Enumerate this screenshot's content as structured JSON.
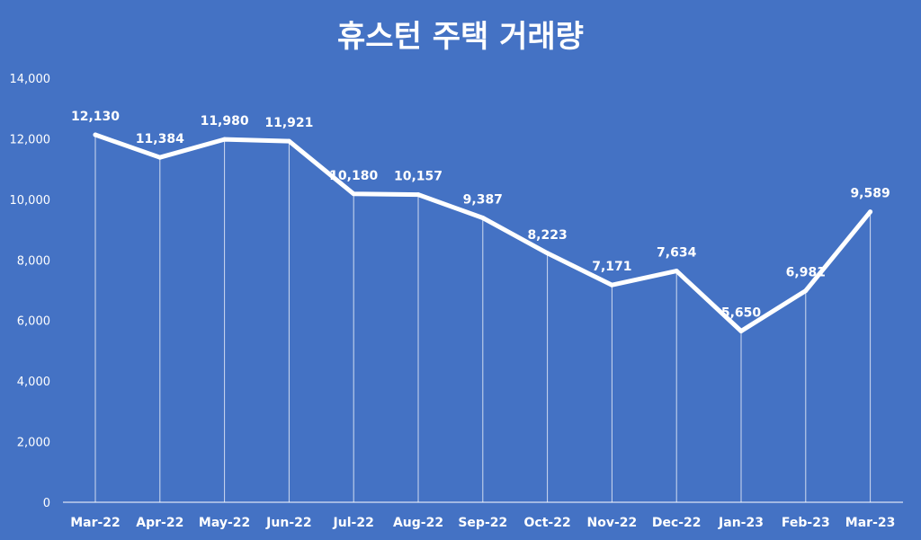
{
  "chart_data": {
    "type": "line",
    "title": "휴스턴 주택 거래량",
    "xlabel": "",
    "ylabel": "",
    "ylim": [
      0,
      14000
    ],
    "yticks": [
      0,
      2000,
      4000,
      6000,
      8000,
      10000,
      12000,
      14000
    ],
    "ytick_labels": [
      "0",
      "2,000",
      "4,000",
      "6,000",
      "8,000",
      "10,000",
      "12,000",
      "14,000"
    ],
    "grid": false,
    "legend": "none",
    "categories": [
      "Mar-22",
      "Apr-22",
      "May-22",
      "Jun-22",
      "Jul-22",
      "Aug-22",
      "Sep-22",
      "Oct-22",
      "Nov-22",
      "Dec-22",
      "Jan-23",
      "Feb-23",
      "Mar-23"
    ],
    "series": [
      {
        "values": [
          12130,
          11384,
          11980,
          11921,
          10180,
          10157,
          9387,
          8223,
          7171,
          7634,
          5650,
          6981,
          9589
        ],
        "data_labels": [
          "12,130",
          "11,384",
          "11,980",
          "11,921",
          "10,180",
          "10,157",
          "9,387",
          "8,223",
          "7,171",
          "7,634",
          "5,650",
          "6,981",
          "9,589"
        ]
      }
    ],
    "colors": {
      "background": "#4472C4",
      "line": "#FFFFFF",
      "text": "#FFFFFF"
    }
  }
}
